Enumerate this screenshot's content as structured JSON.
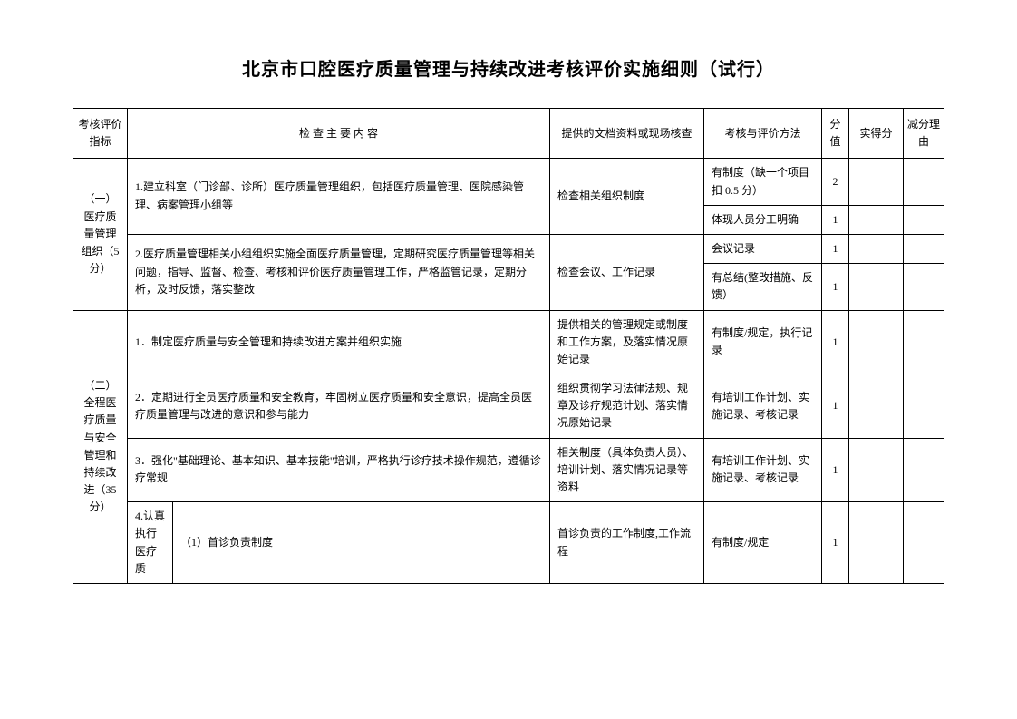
{
  "title": "北京市口腔医疗质量管理与持续改进考核评价实施细则（试行）",
  "headers": {
    "indicator": "考核评价指标",
    "content": "检 查 主 要 内 容",
    "docs": "提供的文档资料或现场核查",
    "method": "考核与评价方法",
    "score": "分值",
    "actual": "实得分",
    "deduct": "减分理由"
  },
  "section1": {
    "label": "（一）医疗质量管理组织（5分）",
    "row1": {
      "content": "1.建立科室（门诊部、诊所）医疗质量管理组织，包括医疗质量管理、医院感染管理、病案管理小组等",
      "docs": "检查相关组织制度",
      "method1": "有制度（缺一个项目扣 0.5 分）",
      "score1": "2",
      "method2": "体现人员分工明确",
      "score2": "1"
    },
    "row2": {
      "content": "2.医疗质量管理相关小组组织实施全面医疗质量管理，定期研究医疗质量管理等相关问题，指导、监督、检查、考核和评价医疗质量管理工作，严格监管记录，定期分析，及时反馈，落实整改",
      "docs": "检查会议、工作记录",
      "method1": "会议记录",
      "score1": "1",
      "method2": "有总结(整改措施、反馈）",
      "score2": "1"
    }
  },
  "section2": {
    "label": "（二）全程医疗质量与安全管理和持续改进（35分）",
    "row1": {
      "content": "1．制定医疗质量与安全管理和持续改进方案并组织实施",
      "docs": "提供相关的管理规定或制度和工作方案，及落实情况原始记录",
      "method": "有制度/规定，执行记录",
      "score": "1"
    },
    "row2": {
      "content": "2．定期进行全员医疗质量和安全教育，牢固树立医疗质量和安全意识，提高全员医疗质量管理与改进的意识和参与能力",
      "docs": "组织贯彻学习法律法规、规章及诊疗规范计划、落实情况原始记录",
      "method": "有培训工作计划、实施记录、考核记录",
      "score": "1"
    },
    "row3": {
      "content": "3．强化\"基础理论、基本知识、基本技能\"培训，严格执行诊疗技术操作规范，遵循诊疗常规",
      "docs": "相关制度（具体负责人员）、培训计划、落实情况记录等资料",
      "method": "有培训工作计划、实施记录、考核记录",
      "score": "1"
    },
    "row4": {
      "label": "4.认真执行医疗质",
      "content": "（1）首诊负责制度",
      "docs": "首诊负责的工作制度,工作流程",
      "method": "有制度/规定",
      "score": "1"
    }
  }
}
